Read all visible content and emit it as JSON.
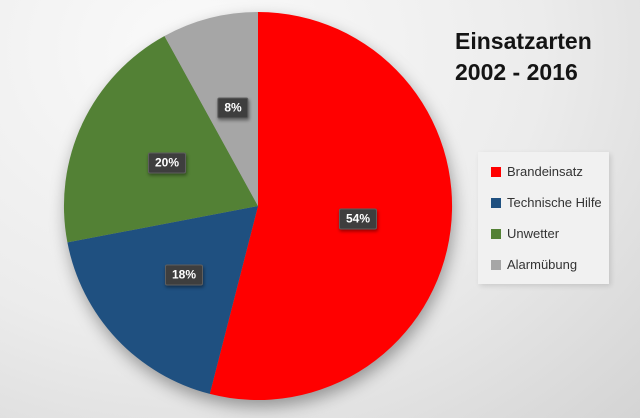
{
  "chart_data": {
    "type": "pie",
    "title": "Einsatzarten 2002 - 2016",
    "title_line1": "Einsatzarten",
    "title_line2": "2002 - 2016",
    "categories": [
      "Brandeinsatz",
      "Technische Hilfe",
      "Unwetter",
      "Alarmübung"
    ],
    "values": [
      54,
      18,
      20,
      8
    ],
    "data_labels": [
      "54%",
      "18%",
      "20%",
      "8%"
    ],
    "colors": [
      "#ff0000",
      "#1f5080",
      "#538135",
      "#a6a6a6"
    ],
    "start_angle_deg": 0,
    "direction": "clockwise",
    "legend_position": "right",
    "style": {
      "label_badge_bg": "#3e3e3e",
      "label_badge_text": "#ffffff",
      "legend_bg": "#f1f1f1",
      "title_color": "#141414",
      "background_light": "#fafafa",
      "background_dark": "#d4d4d4"
    }
  }
}
